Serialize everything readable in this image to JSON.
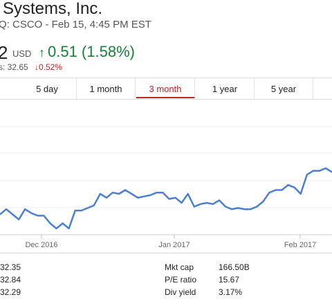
{
  "header": {
    "company_name": "Systems, Inc.",
    "ticker_line": "Q: CSCO - Feb 15, 4:45 PM EST",
    "price_fragment": "2",
    "currency": "USD",
    "change_arrow": "↑",
    "change_value": "0.51 (1.58%)",
    "after_hours_label": "s: 32.65",
    "after_hours_change": "↓0.52%",
    "colors": {
      "positive": "#188038",
      "negative": "#c5221f"
    }
  },
  "tabs": [
    {
      "label": "5 day",
      "active": false
    },
    {
      "label": "1 month",
      "active": false
    },
    {
      "label": "3 month",
      "active": true
    },
    {
      "label": "1 year",
      "active": false
    },
    {
      "label": "5 year",
      "active": false
    }
  ],
  "chart_data": {
    "type": "line",
    "x_tick_labels": [
      "Dec 2016",
      "Jan 2017",
      "Feb 2017"
    ],
    "series": [
      {
        "color": "#4a7fd6",
        "values": [
          29.2,
          29.6,
          29.2,
          28.8,
          29.6,
          29.3,
          29.1,
          29.1,
          28.5,
          28.1,
          28.5,
          28.1,
          29.5,
          29.5,
          29.7,
          29.9,
          30.8,
          30.5,
          30.9,
          30.8,
          31.1,
          30.8,
          30.5,
          30.6,
          30.7,
          30.9,
          30.9,
          30.4,
          30.5,
          30.1,
          30.8,
          29.8,
          30.0,
          30.1,
          30.0,
          30.3,
          29.8,
          29.6,
          29.7,
          29.6,
          29.6,
          29.8,
          30.2,
          30.9,
          31.1,
          31.1,
          31.5,
          31.3,
          30.8,
          32.3,
          32.6,
          32.6,
          32.8,
          32.5
        ]
      }
    ]
  },
  "stats": {
    "left_values": [
      "32.35",
      "32.84",
      "32.29"
    ],
    "right_rows": [
      {
        "label": "Mkt cap",
        "value": "166.50B"
      },
      {
        "label": "P/E ratio",
        "value": "15.67"
      },
      {
        "label": "Div yield",
        "value": "3.17%"
      }
    ]
  }
}
